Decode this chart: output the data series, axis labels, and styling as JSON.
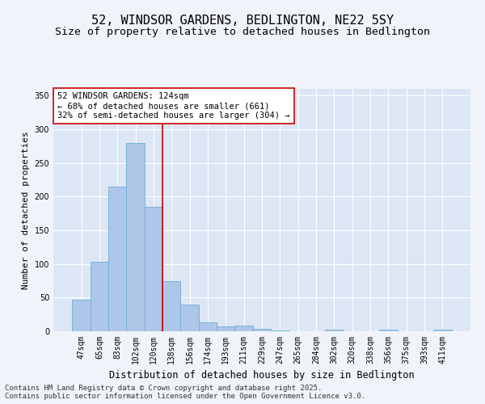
{
  "title": "52, WINDSOR GARDENS, BEDLINGTON, NE22 5SY",
  "subtitle": "Size of property relative to detached houses in Bedlington",
  "xlabel": "Distribution of detached houses by size in Bedlington",
  "ylabel": "Number of detached properties",
  "categories": [
    "47sqm",
    "65sqm",
    "83sqm",
    "102sqm",
    "120sqm",
    "138sqm",
    "156sqm",
    "174sqm",
    "193sqm",
    "211sqm",
    "229sqm",
    "247sqm",
    "265sqm",
    "284sqm",
    "302sqm",
    "320sqm",
    "338sqm",
    "356sqm",
    "375sqm",
    "393sqm",
    "411sqm"
  ],
  "values": [
    47,
    103,
    215,
    280,
    185,
    75,
    40,
    13,
    7,
    8,
    4,
    1,
    0,
    0,
    2,
    0,
    0,
    2,
    0,
    0,
    2
  ],
  "bar_color": "#aec6e8",
  "bar_edge_color": "#6aafd4",
  "vline_x_index": 4,
  "vline_color": "#cc0000",
  "annotation_text": "52 WINDSOR GARDENS: 124sqm\n← 68% of detached houses are smaller (661)\n32% of semi-detached houses are larger (304) →",
  "annotation_box_color": "#ffffff",
  "annotation_box_edge": "#cc0000",
  "ylim": [
    0,
    360
  ],
  "yticks": [
    0,
    50,
    100,
    150,
    200,
    250,
    300,
    350
  ],
  "fig_bg_color": "#f0f4fa",
  "plot_bg_color": "#dce6f5",
  "footer_line1": "Contains HM Land Registry data © Crown copyright and database right 2025.",
  "footer_line2": "Contains public sector information licensed under the Open Government Licence v3.0.",
  "title_fontsize": 11,
  "subtitle_fontsize": 9.5,
  "xlabel_fontsize": 8.5,
  "ylabel_fontsize": 8,
  "tick_fontsize": 7,
  "annotation_fontsize": 7.5,
  "footer_fontsize": 6.5
}
